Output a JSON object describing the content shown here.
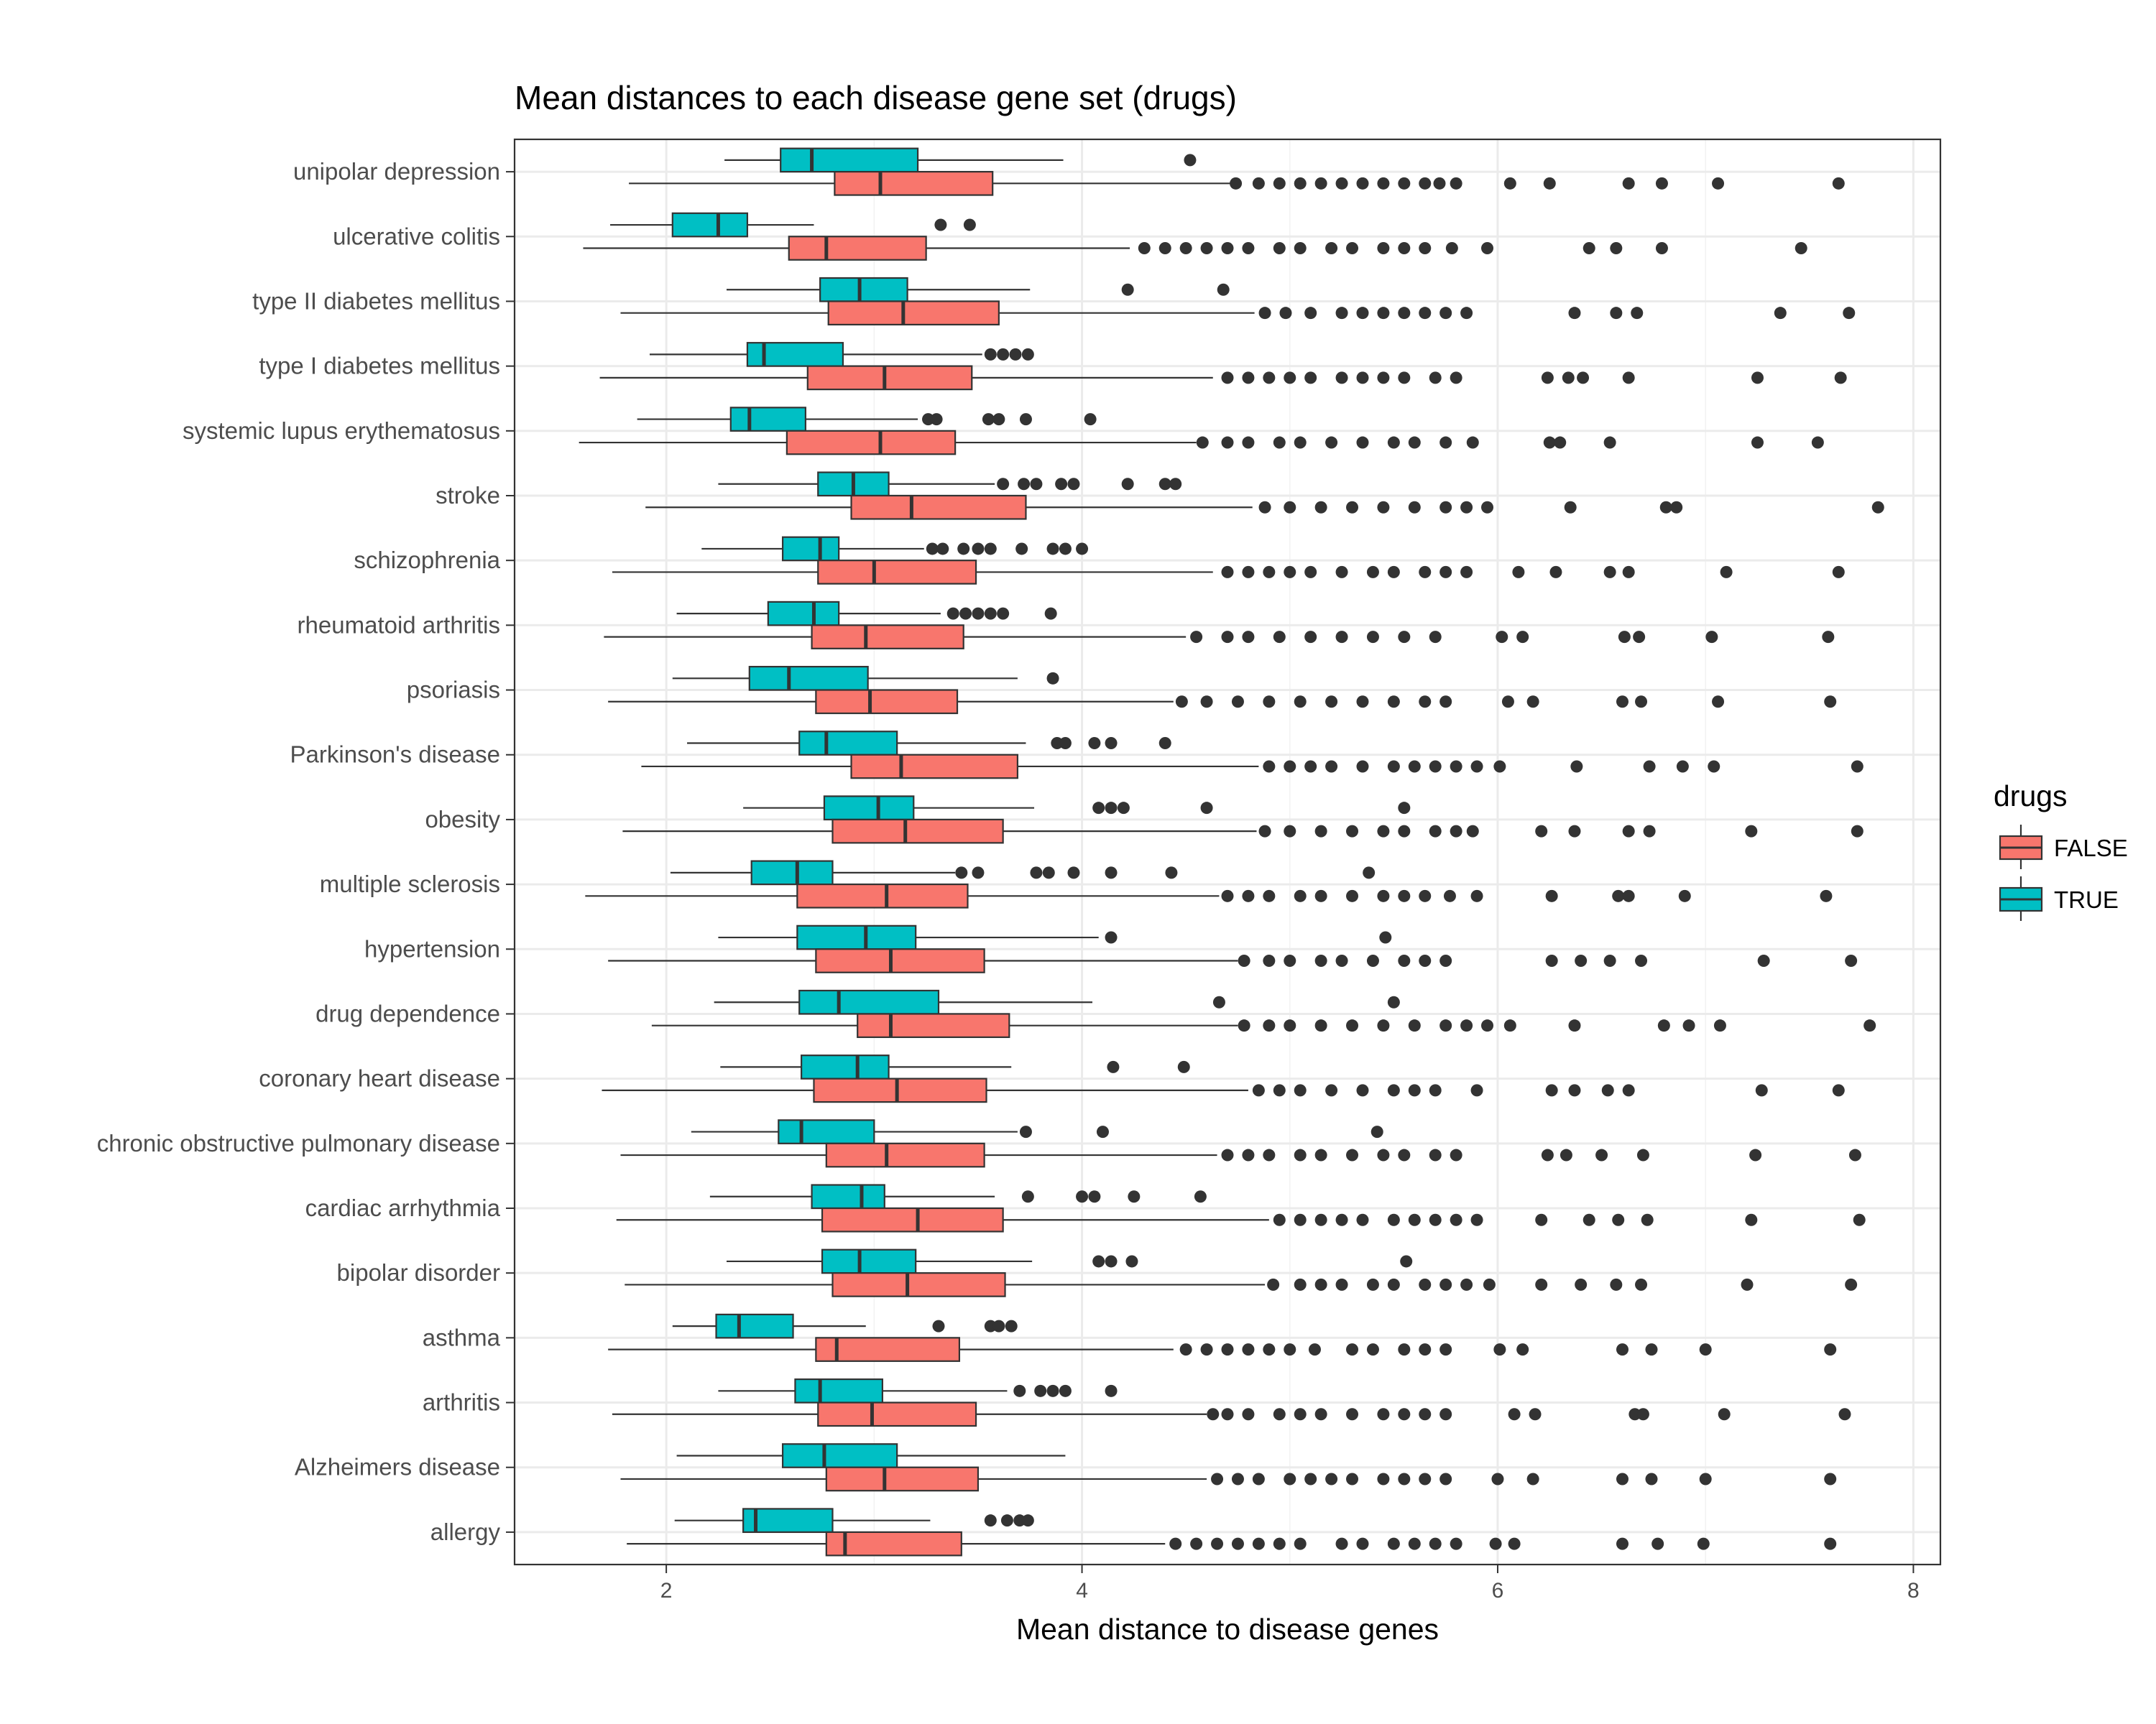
{
  "chart_data": {
    "type": "boxplot",
    "orientation": "horizontal",
    "title": "Mean distances to each disease gene set (drugs)",
    "xlabel": "Mean distance to disease genes",
    "ylabel": "",
    "xlim": [
      1.27,
      8.13
    ],
    "x_ticks": [
      2,
      4,
      6,
      8
    ],
    "grid": true,
    "legend": {
      "title": "drugs",
      "position": "right",
      "entries": [
        {
          "name": "FALSE",
          "color": "#F8766D"
        },
        {
          "name": "TRUE",
          "color": "#00BFC4"
        }
      ]
    },
    "categories": [
      "unipolar depression",
      "ulcerative colitis",
      "type II diabetes mellitus",
      "type I diabetes mellitus",
      "systemic lupus erythematosus",
      "stroke",
      "schizophrenia",
      "rheumatoid arthritis",
      "psoriasis",
      "Parkinson's disease",
      "obesity",
      "multiple sclerosis",
      "hypertension",
      "drug dependence",
      "coronary heart disease",
      "chronic obstructive pulmonary disease",
      "cardiac arrhythmia",
      "bipolar disorder",
      "asthma",
      "arthritis",
      "Alzheimers disease",
      "allergy"
    ],
    "series": [
      {
        "name": "TRUE",
        "color": "#00BFC4",
        "boxes": [
          {
            "min": 2.28,
            "q1": 2.55,
            "median": 2.7,
            "q3": 3.21,
            "max": 3.91,
            "outliers": [
              4.52
            ]
          },
          {
            "min": 1.73,
            "q1": 2.03,
            "median": 2.25,
            "q3": 2.39,
            "max": 2.71,
            "outliers": [
              3.32,
              3.46
            ]
          },
          {
            "min": 2.29,
            "q1": 2.74,
            "median": 2.93,
            "q3": 3.16,
            "max": 3.75,
            "outliers": [
              4.22,
              4.68
            ]
          },
          {
            "min": 1.92,
            "q1": 2.39,
            "median": 2.47,
            "q3": 2.85,
            "max": 3.52,
            "outliers": [
              3.56,
              3.62,
              3.68,
              3.74
            ]
          },
          {
            "min": 1.86,
            "q1": 2.31,
            "median": 2.4,
            "q3": 2.67,
            "max": 3.21,
            "outliers": [
              3.26,
              3.3,
              3.55,
              3.6,
              3.73,
              4.04
            ]
          },
          {
            "min": 2.25,
            "q1": 2.73,
            "median": 2.9,
            "q3": 3.07,
            "max": 3.58,
            "outliers": [
              3.62,
              3.72,
              3.78,
              3.9,
              3.96,
              4.22,
              4.4,
              4.45
            ]
          },
          {
            "min": 2.17,
            "q1": 2.56,
            "median": 2.74,
            "q3": 2.83,
            "max": 3.24,
            "outliers": [
              3.28,
              3.33,
              3.43,
              3.5,
              3.56,
              3.71,
              3.86,
              3.92,
              4.0
            ]
          },
          {
            "min": 2.05,
            "q1": 2.49,
            "median": 2.71,
            "q3": 2.83,
            "max": 3.32,
            "outliers": [
              3.38,
              3.44,
              3.5,
              3.56,
              3.62,
              3.85
            ]
          },
          {
            "min": 2.03,
            "q1": 2.4,
            "median": 2.59,
            "q3": 2.97,
            "max": 3.69,
            "outliers": [
              3.86
            ]
          },
          {
            "min": 2.1,
            "q1": 2.64,
            "median": 2.77,
            "q3": 3.11,
            "max": 3.73,
            "outliers": [
              3.88,
              3.92,
              4.06,
              4.14,
              4.4
            ]
          },
          {
            "min": 2.37,
            "q1": 2.76,
            "median": 3.02,
            "q3": 3.19,
            "max": 3.77,
            "outliers": [
              4.08,
              4.14,
              4.2,
              4.6,
              5.55
            ]
          },
          {
            "min": 2.02,
            "q1": 2.41,
            "median": 2.63,
            "q3": 2.8,
            "max": 3.39,
            "outliers": [
              3.42,
              3.5,
              3.78,
              3.84,
              3.96,
              4.14,
              4.43,
              5.38
            ]
          },
          {
            "min": 2.25,
            "q1": 2.63,
            "median": 2.96,
            "q3": 3.2,
            "max": 4.08,
            "outliers": [
              4.14,
              5.46
            ]
          },
          {
            "min": 2.23,
            "q1": 2.64,
            "median": 2.83,
            "q3": 3.31,
            "max": 4.05,
            "outliers": [
              4.66,
              5.5
            ]
          },
          {
            "min": 2.26,
            "q1": 2.65,
            "median": 2.92,
            "q3": 3.07,
            "max": 3.66,
            "outliers": [
              4.15,
              4.49
            ]
          },
          {
            "min": 2.12,
            "q1": 2.54,
            "median": 2.65,
            "q3": 3.0,
            "max": 3.69,
            "outliers": [
              3.73,
              4.1,
              5.42
            ]
          },
          {
            "min": 2.21,
            "q1": 2.7,
            "median": 2.94,
            "q3": 3.05,
            "max": 3.58,
            "outliers": [
              3.74,
              4.0,
              4.06,
              4.25,
              4.57
            ]
          },
          {
            "min": 2.29,
            "q1": 2.75,
            "median": 2.93,
            "q3": 3.2,
            "max": 3.76,
            "outliers": [
              4.08,
              4.14,
              4.24,
              5.56
            ]
          },
          {
            "min": 2.03,
            "q1": 2.24,
            "median": 2.35,
            "q3": 2.61,
            "max": 2.96,
            "outliers": [
              3.31,
              3.56,
              3.6,
              3.66
            ]
          },
          {
            "min": 2.25,
            "q1": 2.62,
            "median": 2.74,
            "q3": 3.04,
            "max": 3.64,
            "outliers": [
              3.7,
              3.8,
              3.86,
              3.92,
              4.14
            ]
          },
          {
            "min": 2.05,
            "q1": 2.56,
            "median": 2.76,
            "q3": 3.11,
            "max": 3.92,
            "outliers": []
          },
          {
            "min": 2.04,
            "q1": 2.37,
            "median": 2.43,
            "q3": 2.8,
            "max": 3.27,
            "outliers": [
              3.56,
              3.64,
              3.7,
              3.74
            ]
          }
        ]
      },
      {
        "name": "FALSE",
        "color": "#F8766D",
        "boxes": [
          {
            "min": 1.82,
            "q1": 2.81,
            "median": 3.03,
            "q3": 3.57,
            "max": 4.72,
            "outliers": [
              4.74,
              4.85,
              4.95,
              5.05,
              5.15,
              5.25,
              5.35,
              5.45,
              5.55,
              5.65,
              5.72,
              5.8,
              6.06,
              6.25,
              6.63,
              6.79,
              7.06,
              7.64
            ]
          },
          {
            "min": 1.6,
            "q1": 2.59,
            "median": 2.77,
            "q3": 3.25,
            "max": 4.23,
            "outliers": [
              4.3,
              4.4,
              4.5,
              4.6,
              4.7,
              4.8,
              4.95,
              5.05,
              5.2,
              5.3,
              5.45,
              5.55,
              5.65,
              5.78,
              5.95,
              6.44,
              6.57,
              6.79,
              7.46
            ]
          },
          {
            "min": 1.78,
            "q1": 2.78,
            "median": 3.14,
            "q3": 3.6,
            "max": 4.83,
            "outliers": [
              4.88,
              4.98,
              5.1,
              5.25,
              5.35,
              5.45,
              5.55,
              5.65,
              5.75,
              5.85,
              6.37,
              6.57,
              6.67,
              7.36,
              7.69
            ]
          },
          {
            "min": 1.68,
            "q1": 2.68,
            "median": 3.05,
            "q3": 3.47,
            "max": 4.63,
            "outliers": [
              4.7,
              4.8,
              4.9,
              5.0,
              5.1,
              5.25,
              5.35,
              5.45,
              5.55,
              5.7,
              5.8,
              6.24,
              6.34,
              6.41,
              6.63,
              7.25,
              7.65
            ]
          },
          {
            "min": 1.58,
            "q1": 2.58,
            "median": 3.03,
            "q3": 3.39,
            "max": 4.55,
            "outliers": [
              4.58,
              4.7,
              4.8,
              4.95,
              5.05,
              5.2,
              5.35,
              5.5,
              5.6,
              5.75,
              5.88,
              6.25,
              6.3,
              6.54,
              7.25,
              7.54
            ]
          },
          {
            "min": 1.9,
            "q1": 2.89,
            "median": 3.18,
            "q3": 3.73,
            "max": 4.82,
            "outliers": [
              4.88,
              5.0,
              5.15,
              5.3,
              5.45,
              5.6,
              5.75,
              5.85,
              5.95,
              6.35,
              6.81,
              6.86,
              7.83
            ]
          },
          {
            "min": 1.74,
            "q1": 2.73,
            "median": 3.0,
            "q3": 3.49,
            "max": 4.63,
            "outliers": [
              4.7,
              4.8,
              4.9,
              5.0,
              5.1,
              5.25,
              5.4,
              5.5,
              5.65,
              5.75,
              5.85,
              6.1,
              6.28,
              6.54,
              6.63,
              7.1,
              7.64
            ]
          },
          {
            "min": 1.7,
            "q1": 2.7,
            "median": 2.96,
            "q3": 3.43,
            "max": 4.5,
            "outliers": [
              4.55,
              4.7,
              4.8,
              4.95,
              5.1,
              5.25,
              5.4,
              5.55,
              5.7,
              6.02,
              6.12,
              6.61,
              6.68,
              7.03,
              7.59
            ]
          },
          {
            "min": 1.72,
            "q1": 2.72,
            "median": 2.98,
            "q3": 3.4,
            "max": 4.44,
            "outliers": [
              4.48,
              4.6,
              4.75,
              4.9,
              5.05,
              5.2,
              5.35,
              5.5,
              5.65,
              5.75,
              6.05,
              6.17,
              6.6,
              6.69,
              7.06,
              7.6
            ]
          },
          {
            "min": 1.88,
            "q1": 2.89,
            "median": 3.13,
            "q3": 3.69,
            "max": 4.85,
            "outliers": [
              4.9,
              5.0,
              5.1,
              5.2,
              5.35,
              5.5,
              5.6,
              5.7,
              5.8,
              5.9,
              6.01,
              6.38,
              6.73,
              6.89,
              7.04,
              7.73
            ]
          },
          {
            "min": 1.79,
            "q1": 2.8,
            "median": 3.15,
            "q3": 3.62,
            "max": 4.84,
            "outliers": [
              4.88,
              5.0,
              5.15,
              5.3,
              5.45,
              5.55,
              5.7,
              5.8,
              5.88,
              6.21,
              6.37,
              6.63,
              6.73,
              7.22,
              7.73
            ]
          },
          {
            "min": 1.61,
            "q1": 2.63,
            "median": 3.06,
            "q3": 3.45,
            "max": 4.66,
            "outliers": [
              4.7,
              4.8,
              4.9,
              5.05,
              5.15,
              5.3,
              5.45,
              5.55,
              5.65,
              5.77,
              5.9,
              6.26,
              6.58,
              6.63,
              6.9,
              7.58
            ]
          },
          {
            "min": 1.72,
            "q1": 2.72,
            "median": 3.08,
            "q3": 3.53,
            "max": 4.75,
            "outliers": [
              4.78,
              4.9,
              5.0,
              5.15,
              5.25,
              5.4,
              5.55,
              5.65,
              5.75,
              6.26,
              6.4,
              6.54,
              6.69,
              7.28,
              7.7
            ]
          },
          {
            "min": 1.93,
            "q1": 2.92,
            "median": 3.08,
            "q3": 3.65,
            "max": 4.75,
            "outliers": [
              4.78,
              4.9,
              5.0,
              5.15,
              5.3,
              5.45,
              5.6,
              5.75,
              5.85,
              5.95,
              6.06,
              6.37,
              6.8,
              6.92,
              7.07,
              7.79
            ]
          },
          {
            "min": 1.69,
            "q1": 2.71,
            "median": 3.11,
            "q3": 3.54,
            "max": 4.8,
            "outliers": [
              4.85,
              4.95,
              5.05,
              5.2,
              5.35,
              5.5,
              5.6,
              5.7,
              5.9,
              6.26,
              6.37,
              6.53,
              6.63,
              7.27,
              7.64
            ]
          },
          {
            "min": 1.78,
            "q1": 2.77,
            "median": 3.06,
            "q3": 3.53,
            "max": 4.65,
            "outliers": [
              4.7,
              4.8,
              4.9,
              5.05,
              5.15,
              5.3,
              5.45,
              5.55,
              5.7,
              5.8,
              6.24,
              6.33,
              6.5,
              6.7,
              7.24,
              7.72
            ]
          },
          {
            "min": 1.76,
            "q1": 2.75,
            "median": 3.21,
            "q3": 3.62,
            "max": 4.9,
            "outliers": [
              4.95,
              5.05,
              5.15,
              5.25,
              5.35,
              5.5,
              5.6,
              5.7,
              5.8,
              5.9,
              6.21,
              6.44,
              6.58,
              6.72,
              7.22,
              7.74
            ]
          },
          {
            "min": 1.8,
            "q1": 2.8,
            "median": 3.16,
            "q3": 3.63,
            "max": 4.88,
            "outliers": [
              4.92,
              5.05,
              5.15,
              5.25,
              5.4,
              5.5,
              5.65,
              5.75,
              5.85,
              5.96,
              6.21,
              6.4,
              6.57,
              6.69,
              7.2,
              7.7
            ]
          },
          {
            "min": 1.72,
            "q1": 2.72,
            "median": 2.82,
            "q3": 3.41,
            "max": 4.44,
            "outliers": [
              4.5,
              4.6,
              4.7,
              4.8,
              4.9,
              5.0,
              5.12,
              5.3,
              5.4,
              5.55,
              5.65,
              5.75,
              6.01,
              6.12,
              6.6,
              6.74,
              7.0,
              7.6
            ]
          },
          {
            "min": 1.74,
            "q1": 2.73,
            "median": 2.99,
            "q3": 3.49,
            "max": 4.6,
            "outliers": [
              4.63,
              4.7,
              4.8,
              4.95,
              5.05,
              5.15,
              5.3,
              5.45,
              5.55,
              5.65,
              5.75,
              6.08,
              6.18,
              6.66,
              6.7,
              7.09,
              7.67
            ]
          },
          {
            "min": 1.78,
            "q1": 2.77,
            "median": 3.05,
            "q3": 3.5,
            "max": 4.6,
            "outliers": [
              4.65,
              4.75,
              4.85,
              5.0,
              5.1,
              5.2,
              5.3,
              5.45,
              5.55,
              5.65,
              5.75,
              6.0,
              6.17,
              6.6,
              6.74,
              7.0,
              7.6
            ]
          },
          {
            "min": 1.81,
            "q1": 2.77,
            "median": 2.86,
            "q3": 3.42,
            "max": 4.4,
            "outliers": [
              4.45,
              4.55,
              4.65,
              4.75,
              4.85,
              4.95,
              5.05,
              5.25,
              5.35,
              5.5,
              5.6,
              5.7,
              5.8,
              5.99,
              6.08,
              6.6,
              6.77,
              6.99,
              7.6
            ]
          }
        ]
      }
    ]
  }
}
